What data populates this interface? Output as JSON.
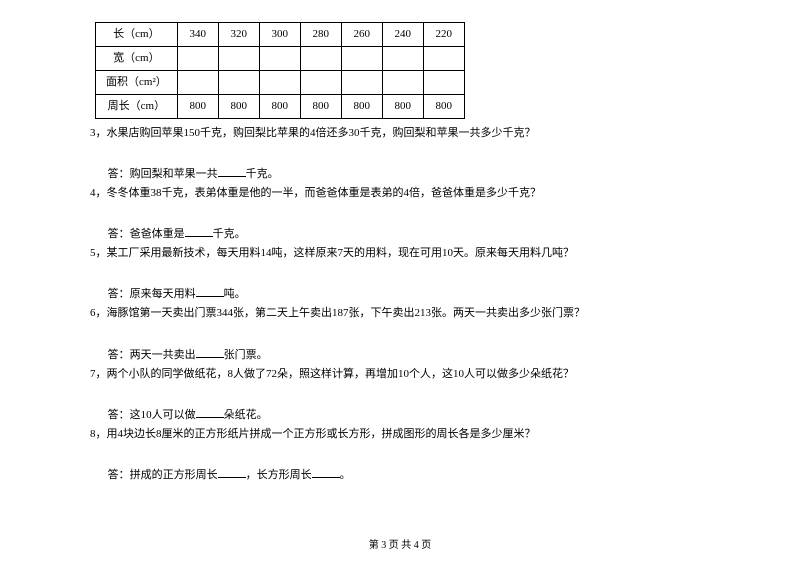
{
  "table": {
    "row_labels": [
      "长（cm）",
      "宽（cm）",
      "面积（cm²）",
      "周长（cm）"
    ],
    "length": [
      "340",
      "320",
      "300",
      "280",
      "260",
      "240",
      "220"
    ],
    "width": [
      "",
      "",
      "",
      "",
      "",
      "",
      ""
    ],
    "area": [
      "",
      "",
      "",
      "",
      "",
      "",
      ""
    ],
    "perimeter": [
      "800",
      "800",
      "800",
      "800",
      "800",
      "800",
      "800"
    ],
    "label_col_width": 72,
    "data_col_width": 32,
    "border_color": "#000000",
    "fontsize": 11
  },
  "problems": {
    "p3": {
      "num": "3，",
      "text": "水果店购回苹果150千克，购回梨比苹果的4倍还多30千克，购回梨和苹果一共多少千克？",
      "ans_prefix": "答：购回梨和苹果一共",
      "ans_suffix": "千克。"
    },
    "p4": {
      "num": "4，",
      "text": "冬冬体重38千克，表弟体重是他的一半，而爸爸体重是表弟的4倍，爸爸体重是多少千克？",
      "ans_prefix": "答：爸爸体重是",
      "ans_suffix": "千克。"
    },
    "p5": {
      "num": "5，",
      "text": "某工厂采用最新技术，每天用料14吨，这样原来7天的用料，现在可用10天。原来每天用料几吨？",
      "ans_prefix": "答：原来每天用料",
      "ans_suffix": "吨。"
    },
    "p6": {
      "num": "6，",
      "text": "海豚馆第一天卖出门票344张，第二天上午卖出187张，下午卖出213张。两天一共卖出多少张门票？",
      "ans_prefix": "答：两天一共卖出",
      "ans_suffix": "张门票。"
    },
    "p7": {
      "num": "7，",
      "text": "两个小队的同学做纸花，8人做了72朵，照这样计算，再增加10个人，这10人可以做多少朵纸花？",
      "ans_prefix": "答：这10人可以做",
      "ans_suffix": "朵纸花。"
    },
    "p8": {
      "num": "8，",
      "text": "用4块边长8厘米的正方形纸片拼成一个正方形或长方形，拼成图形的周长各是多少厘米？",
      "ans_prefix": "答：拼成的正方形周长",
      "ans_mid": "，长方形周长",
      "ans_suffix": "。"
    }
  },
  "footer": "第 3 页 共 4 页"
}
